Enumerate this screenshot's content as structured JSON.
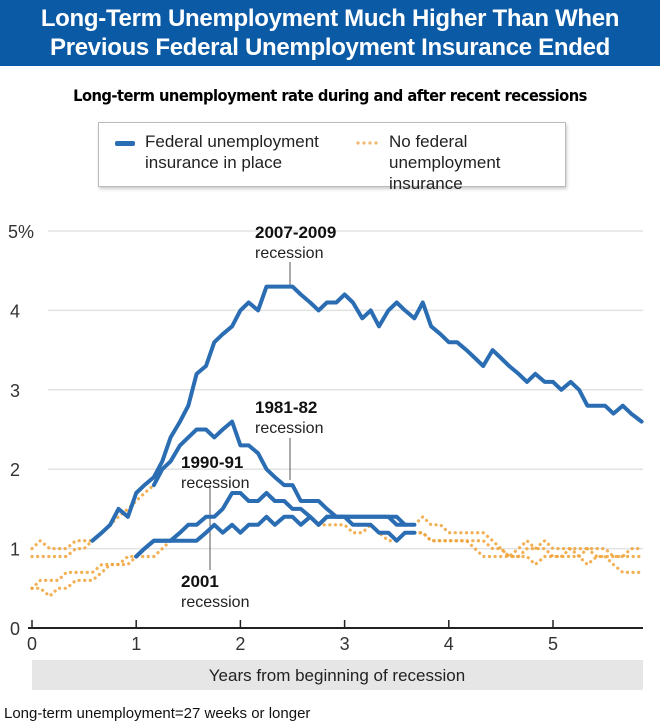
{
  "header": {
    "title_line1": "Long-Term Unemployment Much Higher Than When",
    "title_line2": "Previous Federal Unemployment Insurance Ended"
  },
  "colors": {
    "header_bg": "#0b5aa5",
    "federal": "#2a6db3",
    "no_federal": "#f0a33a"
  },
  "legend": {
    "federal": "Federal unemployment insurance in place",
    "federal_l1": "Federal unemployment",
    "federal_l2": "insurance in place",
    "none_l1": "No federal unemployment",
    "none_l2": "insurance"
  },
  "footnote": "Long-term unemployment=27 weeks or longer",
  "chart_data": {
    "type": "line",
    "title": "Long-term unemployment rate during and after recent recessions",
    "xlabel": "Years from beginning of recession",
    "ylabel": "",
    "xlim": [
      0,
      5.9
    ],
    "ylim": [
      0,
      5
    ],
    "xticks": [
      "0",
      "1",
      "2",
      "3",
      "4",
      "5"
    ],
    "yticks": [
      "0",
      "1",
      "2",
      "3",
      "4",
      "5%"
    ],
    "grid": true,
    "legend_position": "top-center",
    "annotations": [
      {
        "bold": "2007-2009",
        "text": "recession"
      },
      {
        "bold": "1981-82",
        "text": "recession"
      },
      {
        "bold": "1990-91",
        "text": "recession"
      },
      {
        "bold": "2001",
        "text": "recession"
      }
    ],
    "series": [
      {
        "recession": "2007-2009",
        "style": "federal",
        "x": [
          0.58,
          0.67,
          0.75,
          0.83,
          0.92,
          1.0,
          1.08,
          1.17,
          1.25,
          1.33,
          1.42,
          1.5,
          1.58,
          1.67,
          1.75,
          1.83,
          1.92,
          2.0,
          2.08,
          2.17,
          2.25,
          2.33,
          2.42,
          2.5,
          2.58,
          2.67,
          2.75,
          2.83,
          2.92,
          3.0,
          3.08,
          3.17,
          3.25,
          3.33,
          3.42,
          3.5,
          3.58,
          3.67,
          3.75,
          3.83,
          3.92,
          4.0,
          4.08,
          4.17,
          4.25,
          4.33,
          4.42,
          4.5,
          4.58,
          4.67,
          4.75,
          4.83,
          4.92,
          5.0,
          5.08,
          5.17,
          5.25,
          5.33,
          5.42,
          5.5,
          5.58,
          5.67,
          5.75,
          5.85
        ],
        "y": [
          1.1,
          1.2,
          1.3,
          1.5,
          1.4,
          1.7,
          1.8,
          1.9,
          2.1,
          2.4,
          2.6,
          2.8,
          3.2,
          3.3,
          3.6,
          3.7,
          3.8,
          4.0,
          4.1,
          4.0,
          4.3,
          4.3,
          4.3,
          4.3,
          4.2,
          4.1,
          4.0,
          4.1,
          4.1,
          4.2,
          4.1,
          3.9,
          4.0,
          3.8,
          4.0,
          4.1,
          4.0,
          3.9,
          4.1,
          3.8,
          3.7,
          3.6,
          3.6,
          3.5,
          3.4,
          3.3,
          3.5,
          3.4,
          3.3,
          3.2,
          3.1,
          3.2,
          3.1,
          3.1,
          3.0,
          3.1,
          3.0,
          2.8,
          2.8,
          2.8,
          2.7,
          2.8,
          2.7,
          2.6
        ]
      },
      {
        "recession": "1981-82",
        "style": "federal",
        "x": [
          1.17,
          1.25,
          1.33,
          1.42,
          1.5,
          1.58,
          1.67,
          1.75,
          1.83,
          1.92,
          2.0,
          2.08,
          2.17,
          2.25,
          2.33,
          2.42,
          2.5,
          2.58,
          2.67,
          2.75,
          2.83,
          2.92,
          3.0,
          3.08,
          3.17,
          3.25,
          3.33,
          3.42,
          3.5,
          3.58,
          3.67
        ],
        "y": [
          1.8,
          2.0,
          2.1,
          2.3,
          2.4,
          2.5,
          2.5,
          2.4,
          2.5,
          2.6,
          2.3,
          2.3,
          2.2,
          2.0,
          1.9,
          1.8,
          1.8,
          1.6,
          1.6,
          1.6,
          1.5,
          1.4,
          1.4,
          1.4,
          1.4,
          1.4,
          1.4,
          1.4,
          1.4,
          1.3,
          1.3
        ]
      },
      {
        "recession": "1990-91",
        "style": "federal",
        "x": [
          1.0,
          1.08,
          1.17,
          1.25,
          1.33,
          1.42,
          1.5,
          1.58,
          1.67,
          1.75,
          1.83,
          1.92,
          2.0,
          2.08,
          2.17,
          2.25,
          2.33,
          2.42,
          2.5,
          2.58,
          2.67,
          2.75,
          2.83,
          2.92,
          3.0,
          3.08,
          3.17,
          3.25,
          3.33,
          3.42,
          3.5,
          3.58,
          3.67
        ],
        "y": [
          0.9,
          1.0,
          1.1,
          1.1,
          1.1,
          1.2,
          1.3,
          1.3,
          1.4,
          1.4,
          1.5,
          1.7,
          1.7,
          1.6,
          1.6,
          1.7,
          1.6,
          1.6,
          1.5,
          1.5,
          1.4,
          1.3,
          1.4,
          1.4,
          1.4,
          1.3,
          1.3,
          1.3,
          1.2,
          1.2,
          1.1,
          1.2,
          1.2
        ]
      },
      {
        "recession": "2001",
        "style": "federal",
        "x": [
          1.0,
          1.08,
          1.17,
          1.25,
          1.33,
          1.42,
          1.5,
          1.58,
          1.67,
          1.75,
          1.83,
          1.92,
          2.0,
          2.08,
          2.17,
          2.25,
          2.33,
          2.42,
          2.5,
          2.58,
          2.67,
          2.75,
          2.83,
          2.92,
          3.0,
          3.08,
          3.17,
          3.25,
          3.33,
          3.42,
          3.5,
          3.58
        ],
        "y": [
          0.9,
          1.0,
          1.1,
          1.1,
          1.1,
          1.1,
          1.1,
          1.1,
          1.2,
          1.3,
          1.2,
          1.3,
          1.2,
          1.3,
          1.3,
          1.4,
          1.3,
          1.4,
          1.4,
          1.3,
          1.4,
          1.3,
          1.4,
          1.4,
          1.4,
          1.4,
          1.4,
          1.4,
          1.4,
          1.4,
          1.3,
          1.3
        ]
      },
      {
        "recession": "2007-2009",
        "style": "no_federal",
        "x": [
          0,
          0.08,
          0.17,
          0.25,
          0.33,
          0.42,
          0.5,
          0.58
        ],
        "y": [
          1.0,
          1.1,
          1.0,
          1.0,
          1.0,
          1.1,
          1.1,
          1.1
        ]
      },
      {
        "recession": "1981-82",
        "style": "no_federal",
        "x": [
          0,
          0.08,
          0.17,
          0.25,
          0.33,
          0.42,
          0.5,
          0.58,
          0.67,
          0.75,
          0.83,
          0.92,
          1.0,
          1.08,
          1.17
        ],
        "y": [
          0.9,
          0.9,
          0.9,
          0.9,
          0.9,
          1.0,
          1.0,
          1.1,
          1.2,
          1.3,
          1.4,
          1.5,
          1.6,
          1.7,
          1.8
        ]
      },
      {
        "recession": "1990-91",
        "style": "no_federal",
        "x": [
          0,
          0.08,
          0.17,
          0.25,
          0.33,
          0.42,
          0.5,
          0.58,
          0.67,
          0.75,
          0.83,
          0.92,
          1.0
        ],
        "y": [
          0.5,
          0.6,
          0.6,
          0.6,
          0.7,
          0.7,
          0.7,
          0.7,
          0.8,
          0.8,
          0.8,
          0.9,
          0.9
        ]
      },
      {
        "recession": "2001",
        "style": "no_federal",
        "x": [
          0,
          0.08,
          0.17,
          0.25,
          0.33,
          0.42,
          0.5,
          0.58,
          0.67,
          0.75,
          0.83,
          0.92,
          1.0,
          1.08,
          1.17,
          1.25,
          1.33
        ],
        "y": [
          0.5,
          0.5,
          0.4,
          0.5,
          0.5,
          0.6,
          0.6,
          0.6,
          0.7,
          0.8,
          0.8,
          0.8,
          0.9,
          0.9,
          0.9,
          1.0,
          1.1
        ]
      },
      {
        "recession": "1981-82",
        "style": "no_federal",
        "x": [
          3.67,
          3.75,
          3.83,
          3.92,
          4.0,
          4.08,
          4.17,
          4.25,
          4.33,
          4.42,
          4.5,
          4.58,
          4.67,
          4.75,
          4.83,
          4.92,
          5.0,
          5.08,
          5.17,
          5.25,
          5.33,
          5.42,
          5.5,
          5.58,
          5.67,
          5.75,
          5.85
        ],
        "y": [
          1.3,
          1.4,
          1.3,
          1.3,
          1.2,
          1.2,
          1.2,
          1.2,
          1.2,
          1.1,
          1.0,
          0.9,
          0.9,
          1.0,
          1.0,
          1.0,
          0.9,
          0.9,
          0.9,
          0.9,
          1.0,
          0.9,
          0.9,
          0.9,
          0.9,
          1.0,
          1.0
        ]
      },
      {
        "recession": "1990-91",
        "style": "no_federal",
        "x": [
          3.67,
          3.75,
          3.83,
          3.92,
          4.0,
          4.08,
          4.17,
          4.25,
          4.33,
          4.42,
          4.5,
          4.58,
          4.67,
          4.75,
          4.83,
          4.92,
          5.0,
          5.08,
          5.17,
          5.25,
          5.33,
          5.42,
          5.5,
          5.58,
          5.67,
          5.75,
          5.85
        ],
        "y": [
          1.2,
          1.2,
          1.1,
          1.1,
          1.1,
          1.1,
          1.1,
          1.1,
          1.1,
          1.0,
          1.0,
          0.9,
          1.0,
          1.1,
          1.0,
          1.1,
          1.0,
          1.0,
          1.0,
          1.0,
          1.0,
          1.0,
          1.0,
          0.9,
          0.9,
          0.9,
          0.9
        ]
      },
      {
        "recession": "2001",
        "style": "no_federal",
        "x": [
          2.75,
          2.83,
          2.92,
          3.0,
          3.08,
          3.17,
          3.25,
          3.33,
          3.42,
          3.5,
          3.58,
          3.67,
          3.75,
          3.83,
          3.92,
          4.0,
          4.08,
          4.17,
          4.25,
          4.33,
          4.42,
          4.5,
          4.58,
          4.67,
          4.75,
          4.83,
          4.92,
          5.0,
          5.08,
          5.17,
          5.25,
          5.33,
          5.42,
          5.5,
          5.58,
          5.67,
          5.75,
          5.85
        ],
        "y": [
          1.3,
          1.3,
          1.3,
          1.3,
          1.2,
          1.2,
          1.3,
          1.2,
          1.1,
          1.1,
          1.2,
          1.2,
          1.2,
          1.1,
          1.1,
          1.1,
          1.1,
          1.1,
          1.0,
          0.9,
          0.9,
          0.9,
          0.9,
          0.9,
          0.9,
          0.8,
          0.9,
          0.9,
          0.9,
          1.0,
          0.9,
          0.8,
          0.9,
          0.9,
          0.8,
          0.7,
          0.7,
          0.7
        ]
      }
    ]
  }
}
